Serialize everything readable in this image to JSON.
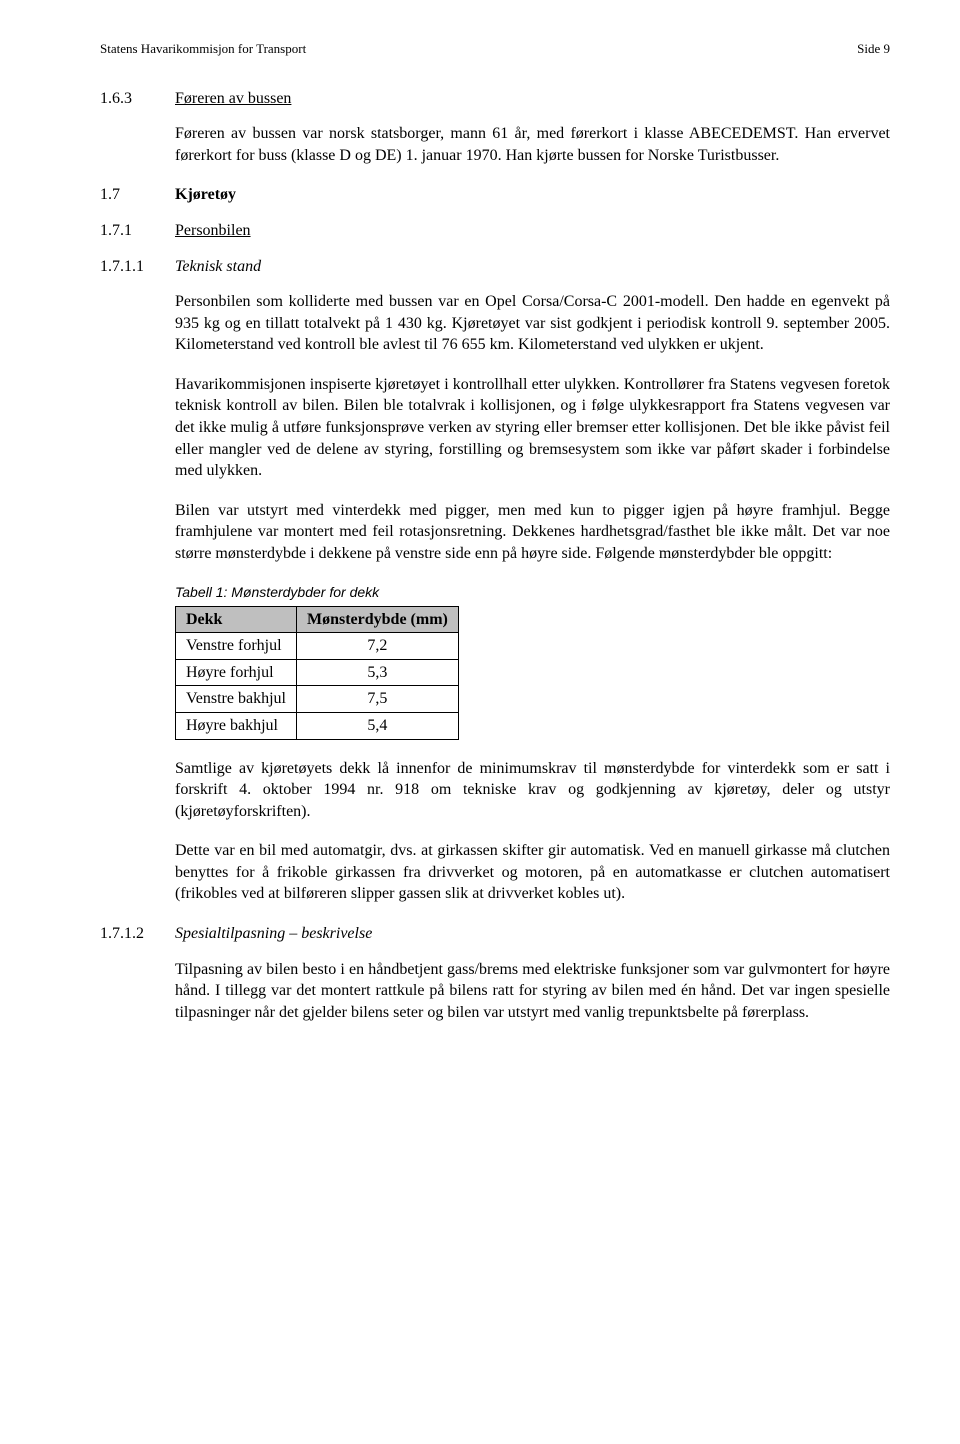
{
  "header": {
    "left": "Statens Havarikommisjon for Transport",
    "right": "Side 9"
  },
  "s163": {
    "num": "1.6.3",
    "title": "Føreren av bussen",
    "p1": "Føreren av bussen var norsk statsborger, mann 61 år, med førerkort i klasse ABECEDEMST. Han ervervet førerkort for buss (klasse D og DE) 1. januar 1970. Han kjørte bussen for Norske Turistbusser."
  },
  "s17": {
    "num": "1.7",
    "title": "Kjøretøy"
  },
  "s171": {
    "num": "1.7.1",
    "title": "Personbilen"
  },
  "s1711": {
    "num": "1.7.1.1",
    "title": "Teknisk stand",
    "p1": "Personbilen som kolliderte med bussen var en Opel Corsa/Corsa-C 2001-modell. Den hadde en egenvekt på 935 kg og en tillatt totalvekt på 1 430 kg. Kjøretøyet var sist godkjent i periodisk kontroll 9. september 2005. Kilometerstand ved kontroll ble avlest til 76 655 km. Kilometerstand ved ulykken er ukjent.",
    "p2": "Havarikommisjonen inspiserte kjøretøyet i kontrollhall etter ulykken. Kontrollører fra Statens vegvesen foretok teknisk kontroll av bilen. Bilen ble totalvrak i kollisjonen, og i følge ulykkesrapport fra Statens vegvesen var det ikke mulig å utføre funksjonsprøve verken av styring eller bremser etter kollisjonen. Det ble ikke påvist feil eller mangler ved de delene av styring, forstilling og bremsesystem som ikke var påført skader i forbindelse med ulykken.",
    "p3": "Bilen var utstyrt med vinterdekk med pigger, men med kun to pigger igjen på høyre framhjul. Begge framhjulene var montert med feil rotasjonsretning. Dekkenes hardhetsgrad/fasthet ble ikke målt. Det var noe større mønsterdybde i dekkene på venstre side enn på høyre side. Følgende mønsterdybder ble oppgitt:"
  },
  "table": {
    "caption": "Tabell 1: Mønsterdybder for dekk",
    "col1": "Dekk",
    "col2": "Mønsterdybde (mm)",
    "rows": [
      {
        "label": "Venstre forhjul",
        "value": "7,2"
      },
      {
        "label": "Høyre forhjul",
        "value": "5,3"
      },
      {
        "label": "Venstre bakhjul",
        "value": "7,5"
      },
      {
        "label": "Høyre bakhjul",
        "value": "5,4"
      }
    ]
  },
  "after": {
    "p1": "Samtlige av kjøretøyets dekk lå innenfor de minimumskrav til mønsterdybde for vinterdekk som er satt i forskrift 4. oktober 1994 nr. 918 om tekniske krav og godkjenning av kjøretøy, deler og utstyr (kjøretøyforskriften).",
    "p2": "Dette var en bil med automatgir, dvs. at girkassen skifter gir automatisk. Ved en manuell girkasse må clutchen benyttes for å frikoble girkassen fra drivverket og motoren, på en automatkasse er clutchen automatisert (frikobles ved at bilføreren slipper gassen slik at drivverket kobles ut)."
  },
  "s1712": {
    "num": "1.7.1.2",
    "title": "Spesialtilpasning – beskrivelse",
    "p1": "Tilpasning av bilen besto i en håndbetjent gass/brems med elektriske funksjoner som var gulvmontert for høyre hånd. I tillegg var det montert rattkule på bilens ratt for styring av bilen med én hånd. Det var ingen spesielle tilpasninger når det gjelder bilens seter og bilen var utstyrt med vanlig trepunktsbelte på førerplass."
  }
}
